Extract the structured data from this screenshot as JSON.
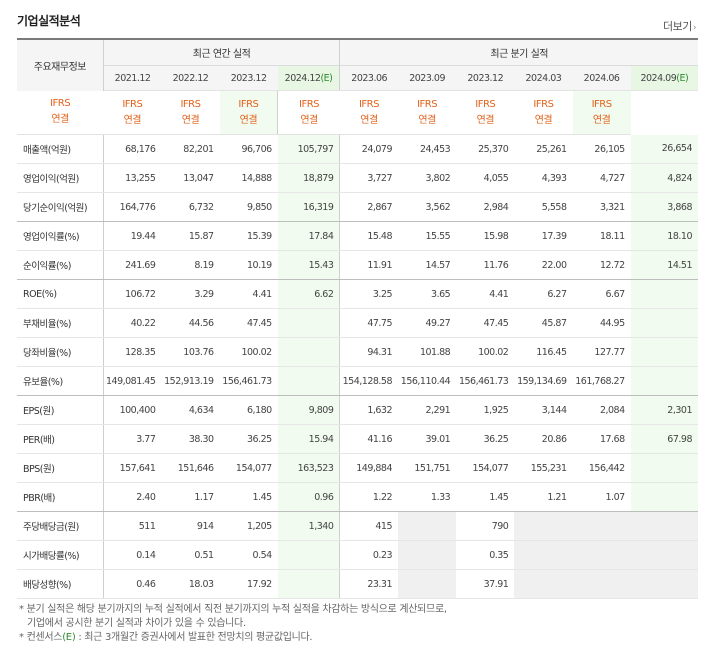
{
  "title": "기업실적분석",
  "more_label": "더보기",
  "more_arrow": "›",
  "header": {
    "row_label": "주요재무정보",
    "annual_label": "최근 연간 실적",
    "quarter_label": "최근 분기 실적",
    "periods": [
      "2021.12",
      "2022.12",
      "2023.12",
      "2024.12",
      "2023.06",
      "2023.09",
      "2023.12",
      "2024.03",
      "2024.06",
      "2024.09"
    ],
    "estimate_mark": "(E)",
    "ifrs_line1": "IFRS",
    "ifrs_line2": "연결"
  },
  "rows": [
    {
      "label": "매출액(억원)",
      "values": [
        "68,176",
        "82,201",
        "96,706",
        "105,797",
        "24,079",
        "24,453",
        "25,370",
        "25,261",
        "26,105",
        "26,654"
      ]
    },
    {
      "label": "영업이익(억원)",
      "values": [
        "13,255",
        "13,047",
        "14,888",
        "18,879",
        "3,727",
        "3,802",
        "4,055",
        "4,393",
        "4,727",
        "4,824"
      ]
    },
    {
      "label": "당기순이익(억원)",
      "values": [
        "164,776",
        "6,732",
        "9,850",
        "16,319",
        "2,867",
        "3,562",
        "2,984",
        "5,558",
        "3,321",
        "3,868"
      ]
    },
    {
      "label": "영업이익률(%)",
      "values": [
        "19.44",
        "15.87",
        "15.39",
        "17.84",
        "15.48",
        "15.55",
        "15.98",
        "17.39",
        "18.11",
        "18.10"
      ]
    },
    {
      "label": "순이익률(%)",
      "values": [
        "241.69",
        "8.19",
        "10.19",
        "15.43",
        "11.91",
        "14.57",
        "11.76",
        "22.00",
        "12.72",
        "14.51"
      ]
    },
    {
      "label": "ROE(%)",
      "values": [
        "106.72",
        "3.29",
        "4.41",
        "6.62",
        "3.25",
        "3.65",
        "4.41",
        "6.27",
        "6.67",
        ""
      ]
    },
    {
      "label": "부채비율(%)",
      "values": [
        "40.22",
        "44.56",
        "47.45",
        "",
        "47.75",
        "49.27",
        "47.45",
        "45.87",
        "44.95",
        ""
      ]
    },
    {
      "label": "당좌비율(%)",
      "values": [
        "128.35",
        "103.76",
        "100.02",
        "",
        "94.31",
        "101.88",
        "100.02",
        "116.45",
        "127.77",
        ""
      ]
    },
    {
      "label": "유보율(%)",
      "values": [
        "149,081.45",
        "152,913.19",
        "156,461.73",
        "",
        "154,128.58",
        "156,110.44",
        "156,461.73",
        "159,134.69",
        "161,768.27",
        ""
      ]
    },
    {
      "label": "EPS(원)",
      "values": [
        "100,400",
        "4,634",
        "6,180",
        "9,809",
        "1,632",
        "2,291",
        "1,925",
        "3,144",
        "2,084",
        "2,301"
      ]
    },
    {
      "label": "PER(배)",
      "values": [
        "3.77",
        "38.30",
        "36.25",
        "15.94",
        "41.16",
        "39.01",
        "36.25",
        "20.86",
        "17.68",
        "67.98"
      ]
    },
    {
      "label": "BPS(원)",
      "values": [
        "157,641",
        "151,646",
        "154,077",
        "163,523",
        "149,884",
        "151,751",
        "154,077",
        "155,231",
        "156,442",
        ""
      ]
    },
    {
      "label": "PBR(배)",
      "values": [
        "2.40",
        "1.17",
        "1.45",
        "0.96",
        "1.22",
        "1.33",
        "1.45",
        "1.21",
        "1.07",
        ""
      ]
    },
    {
      "label": "주당배당금(원)",
      "values": [
        "511",
        "914",
        "1,205",
        "1,340",
        "415",
        "",
        "790",
        "",
        "",
        ""
      ]
    },
    {
      "label": "시가배당률(%)",
      "values": [
        "0.14",
        "0.51",
        "0.54",
        "",
        "0.23",
        "",
        "0.35",
        "",
        "",
        ""
      ]
    },
    {
      "label": "배당성향(%)",
      "values": [
        "0.46",
        "18.03",
        "17.92",
        "",
        "23.31",
        "",
        "37.91",
        "",
        "",
        ""
      ]
    }
  ],
  "notes": {
    "line1": "분기 실적은 해당 분기까지의 누적 실적에서 직전 분기까지의 누적 실적을 차감하는 방식으로 계산되므로,",
    "line2": "기업에서 공시한 분기 실적과 차이가 있을 수 있습니다.",
    "line3_prefix": "컨센서스",
    "line3_mark": "(E)",
    "line3_suffix": ": 최근 3개월간 증권사에서 발표한 전망치의 평균값입니다."
  }
}
